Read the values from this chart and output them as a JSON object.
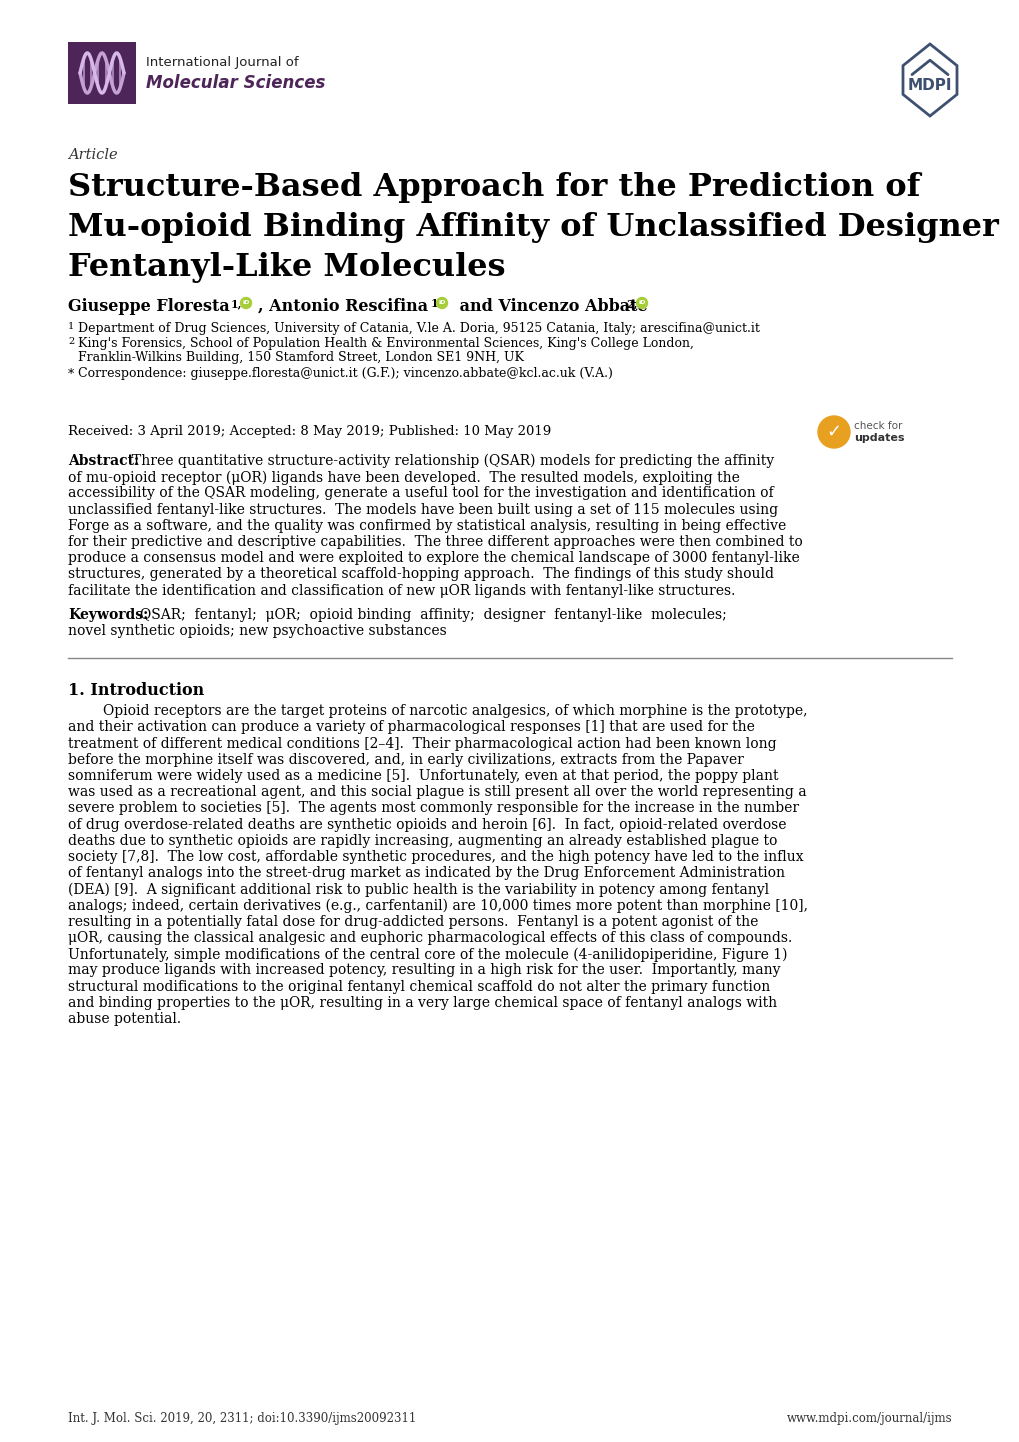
{
  "title_line1": "Structure-Based Approach for the Prediction of",
  "title_line2": "Mu-opioid Binding Affinity of Unclassified Designer",
  "title_line3": "Fentanyl-Like Molecules",
  "article_label": "Article",
  "journal_name_line1": "International Journal of",
  "journal_name_line2": "Molecular Sciences",
  "dates": "Received: 3 April 2019; Accepted: 8 May 2019; Published: 10 May 2019",
  "abstract_label": "Abstract:",
  "abstract_lines": [
    "Three quantitative structure-activity relationship (QSAR) models for predicting the affinity",
    "of mu-opioid receptor (μOR) ligands have been developed.  The resulted models, exploiting the",
    "accessibility of the QSAR modeling, generate a useful tool for the investigation and identification of",
    "unclassified fentanyl-like structures.  The models have been built using a set of 115 molecules using",
    "Forge as a software, and the quality was confirmed by statistical analysis, resulting in being effective",
    "for their predictive and descriptive capabilities.  The three different approaches were then combined to",
    "produce a consensus model and were exploited to explore the chemical landscape of 3000 fentanyl-like",
    "structures, generated by a theoretical scaffold-hopping approach.  The findings of this study should",
    "facilitate the identification and classification of new μOR ligands with fentanyl-like structures."
  ],
  "keywords_label": "Keywords:",
  "keywords_lines": [
    "QSAR;  fentanyl;  μOR;  opioid binding  affinity;  designer  fentanyl-like  molecules;",
    "novel synthetic opioids; new psychoactive substances"
  ],
  "intro_heading": "1. Introduction",
  "intro_lines": [
    "        Opioid receptors are the target proteins of narcotic analgesics, of which morphine is the prototype,",
    "and their activation can produce a variety of pharmacological responses [1] that are used for the",
    "treatment of different medical conditions [2–4].  Their pharmacological action had been known long",
    "before the morphine itself was discovered, and, in early civilizations, extracts from the Papaver",
    "somniferum were widely used as a medicine [5].  Unfortunately, even at that period, the poppy plant",
    "was used as a recreational agent, and this social plague is still present all over the world representing a",
    "severe problem to societies [5].  The agents most commonly responsible for the increase in the number",
    "of drug overdose-related deaths are synthetic opioids and heroin [6].  In fact, opioid-related overdose",
    "deaths due to synthetic opioids are rapidly increasing, augmenting an already established plague to",
    "society [7,8].  The low cost, affordable synthetic procedures, and the high potency have led to the influx",
    "of fentanyl analogs into the street-drug market as indicated by the Drug Enforcement Administration",
    "(DEA) [9].  A significant additional risk to public health is the variability in potency among fentanyl",
    "analogs; indeed, certain derivatives (e.g., carfentanil) are 10,000 times more potent than morphine [10],",
    "resulting in a potentially fatal dose for drug-addicted persons.  Fentanyl is a potent agonist of the",
    "μOR, causing the classical analgesic and euphoric pharmacological effects of this class of compounds.",
    "Unfortunately, simple modifications of the central core of the molecule (4-anilidopiperidine, Figure 1)",
    "may produce ligands with increased potency, resulting in a high risk for the user.  Importantly, many",
    "structural modifications to the original fentanyl chemical scaffold do not alter the primary function",
    "and binding properties to the μOR, resulting in a very large chemical space of fentanyl analogs with",
    "abuse potential."
  ],
  "footer_left": "Int. J. Mol. Sci. 2019, 20, 2311; doi:10.3390/ijms20092311",
  "footer_right": "www.mdpi.com/journal/ijms",
  "bg_color": "#ffffff",
  "text_color": "#000000",
  "header_purple": "#4d2558",
  "mdpi_blue": "#3d5070",
  "orcid_green": "#a6ce39"
}
